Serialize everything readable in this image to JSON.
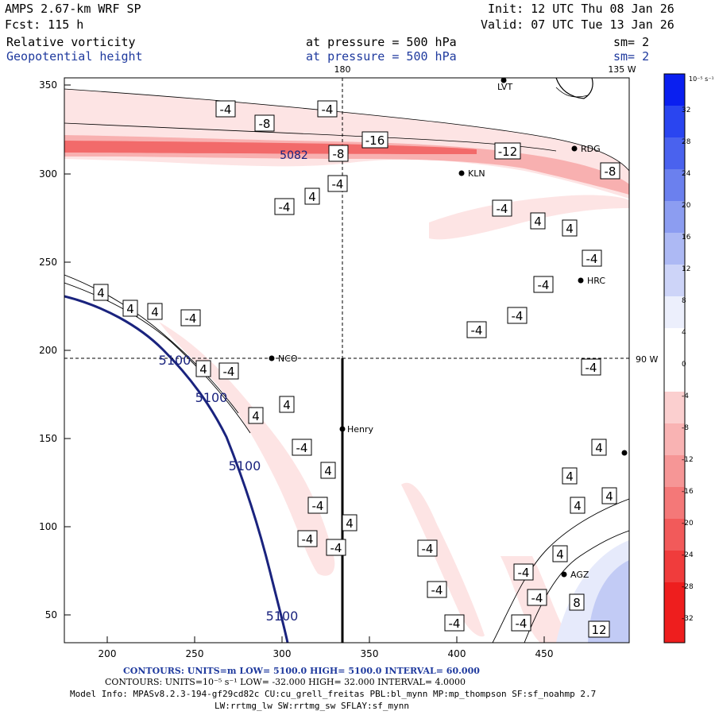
{
  "header": {
    "model": "AMPS 2.67-km WRF SP",
    "forecast": "Fcst:  115 h",
    "init": "Init: 12 UTC Thu 08 Jan 26",
    "valid": "Valid: 07 UTC Tue 13 Jan 26",
    "field1_name": "Relative vorticity",
    "field1_level": "at pressure =  500 hPa",
    "field1_smooth": "sm= 2",
    "field2_name": "Geopotential height",
    "field2_level": "at pressure =  500 hPa",
    "field2_smooth": "sm= 2"
  },
  "map": {
    "meridian_label_top": "180",
    "meridian_label_right_top": "135 W",
    "meridian_label_right": "90 W",
    "x_ticks": [
      "200",
      "250",
      "300",
      "350",
      "400",
      "450"
    ],
    "y_ticks": [
      "350",
      "300",
      "250",
      "200",
      "150",
      "100",
      "50"
    ],
    "stations": [
      "LVT",
      "RDG",
      "KLN",
      "HRC",
      "NCO",
      "Henry",
      "AGZ"
    ],
    "height_label": "5100",
    "height_label_inline": "5082",
    "vort_labels": [
      "-4",
      "-8",
      "-12",
      "-16",
      "4",
      "8",
      "12"
    ]
  },
  "colorbar": {
    "units": "10⁻⁵ s⁻¹",
    "ticks": [
      "32",
      "28",
      "24",
      "20",
      "16",
      "12",
      "8",
      "4",
      "0",
      "-4",
      "-8",
      "-12",
      "-16",
      "-20",
      "-24",
      "-28",
      "-32"
    ],
    "colors": [
      "#0a1ff0",
      "#2a45f0",
      "#4a62ee",
      "#6b80ee",
      "#8c9df1",
      "#adb9f4",
      "#cdd4f8",
      "#eceffc",
      "#ffffff",
      "#fde9e9",
      "#fbcfcf",
      "#f9b3b3",
      "#f69696",
      "#f47878",
      "#f25a5a",
      "#f03c3c",
      "#ee1e1e"
    ]
  },
  "footer": {
    "contours1": "CONTOURS:  UNITS=m  LOW=  5100.0        HIGH=  5100.0        INTERVAL=   60.000",
    "contours2": "CONTOURS:  UNITS=10⁻⁵ s⁻¹  LOW=  -32.000        HIGH=  32.000        INTERVAL=   4.0000",
    "model_info": "Model Info: MPASv8.2.3-194-gf29cd82c CU:cu_grell_freitas PBL:bl_mynn MP:mp_thompson SF:sf_noahmp 2.7",
    "physics": "LW:rrtmg_lw SW:rrtmg_sw SFLAY:sf_mynn"
  }
}
